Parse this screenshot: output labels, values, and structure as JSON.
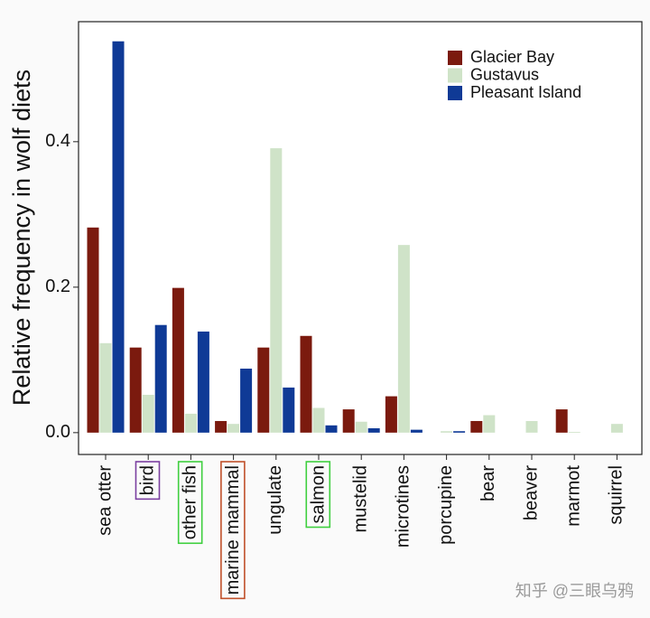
{
  "chart_data": {
    "type": "bar",
    "y_label": "Relative frequency in wolf diets",
    "categories": [
      "sea otter",
      "bird",
      "other fish",
      "marine mammal",
      "ungulate",
      "salmon",
      "mustelid",
      "microtines",
      "porcupine",
      "bear",
      "beaver",
      "marmot",
      "squirrel"
    ],
    "label_box_colors": [
      null,
      "#7b3fa0",
      "#3fcf3f",
      "#c0502a",
      null,
      "#3fcf3f",
      null,
      null,
      null,
      null,
      null,
      null,
      null
    ],
    "series": [
      {
        "name": "Glacier Bay",
        "color": "#7b1a0e",
        "values": [
          0.282,
          0.117,
          0.199,
          0.016,
          0.117,
          0.133,
          0.032,
          0.05,
          0,
          0.016,
          0,
          0.032,
          0
        ]
      },
      {
        "name": "Gustavus",
        "color": "#cfe3c8",
        "values": [
          0.123,
          0.052,
          0.026,
          0.012,
          0.391,
          0.034,
          0.015,
          0.258,
          0.002,
          0.024,
          0.016,
          0.001,
          0.012
        ]
      },
      {
        "name": "Pleasant Island",
        "color": "#0f3a96",
        "values": [
          0.538,
          0.148,
          0.139,
          0.088,
          0.062,
          0.01,
          0.006,
          0.004,
          0.002,
          0,
          0,
          0,
          0
        ]
      }
    ],
    "ylim": [
      -0.03,
      0.565
    ],
    "yticks": [
      {
        "value": 0,
        "label": "0.0"
      },
      0.2,
      0.4
    ],
    "legend": "top-right",
    "watermark": "知乎 @三眼乌鸦"
  }
}
